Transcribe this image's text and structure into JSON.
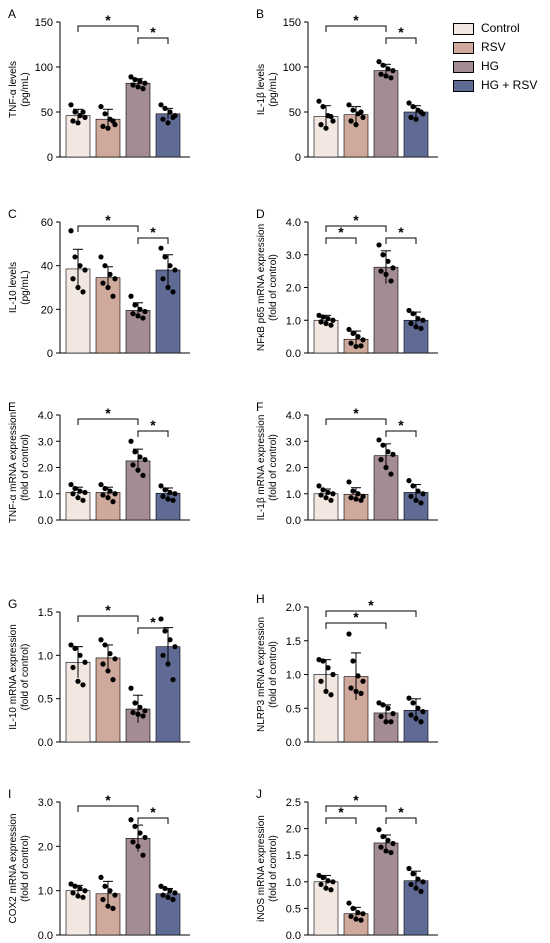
{
  "colors": {
    "control": "#f3e7e1",
    "rsv": "#cfa99b",
    "hg": "#a48c94",
    "hgrsv": "#5f6b94",
    "axis": "#000000"
  },
  "legend": {
    "items": [
      {
        "label": "Control",
        "color": "#f3e7e1"
      },
      {
        "label": "RSV",
        "color": "#cfa99b"
      },
      {
        "label": "HG",
        "color": "#a48c94"
      },
      {
        "label": "HG + RSV",
        "color": "#5f6b94"
      }
    ]
  },
  "chart_data": [
    {
      "panel": "A",
      "type": "bar",
      "categories": [
        "Control",
        "RSV",
        "HG",
        "HG + RSV"
      ],
      "values": [
        46,
        42,
        82,
        48
      ],
      "errors": [
        7,
        11,
        5,
        6
      ],
      "points": [
        [
          58,
          50,
          46,
          44,
          40,
          38,
          50
        ],
        [
          56,
          48,
          42,
          36,
          34,
          32,
          40
        ],
        [
          89,
          86,
          84,
          82,
          80,
          78,
          76
        ],
        [
          58,
          54,
          50,
          46,
          42,
          38,
          44
        ]
      ],
      "ylabel": [
        "TNF-α levels",
        "(pg/mL)"
      ],
      "ylim": [
        0,
        150
      ],
      "yticks": [
        "0",
        "50",
        "100",
        "150"
      ],
      "significance": [
        {
          "from": 0,
          "to": 2,
          "level": 1,
          "label": "*"
        },
        {
          "from": 2,
          "to": 3,
          "level": 0,
          "label": "*"
        }
      ]
    },
    {
      "panel": "B",
      "type": "bar",
      "categories": [
        "Control",
        "RSV",
        "HG",
        "HG + RSV"
      ],
      "values": [
        45,
        47,
        96,
        50
      ],
      "errors": [
        12,
        9,
        7,
        7
      ],
      "points": [
        [
          62,
          56,
          46,
          40,
          36,
          32,
          45
        ],
        [
          58,
          52,
          48,
          44,
          40,
          36,
          50
        ],
        [
          106,
          102,
          98,
          96,
          92,
          90,
          88
        ],
        [
          60,
          56,
          52,
          48,
          44,
          42,
          50
        ]
      ],
      "ylabel": [
        "IL-1β levels",
        "(pg/mL)"
      ],
      "ylim": [
        0,
        150
      ],
      "yticks": [
        "0",
        "50",
        "100",
        "150"
      ],
      "significance": [
        {
          "from": 0,
          "to": 2,
          "level": 1,
          "label": "*"
        },
        {
          "from": 2,
          "to": 3,
          "level": 0,
          "label": "*"
        }
      ]
    },
    {
      "panel": "C",
      "type": "bar",
      "categories": [
        "Control",
        "RSV",
        "HG",
        "HG + RSV"
      ],
      "values": [
        38.5,
        34.5,
        19.5,
        38
      ],
      "errors": [
        9,
        5,
        3.5,
        7
      ],
      "points": [
        [
          56,
          44,
          40,
          38,
          34,
          30,
          28
        ],
        [
          44,
          40,
          36,
          34,
          32,
          30,
          26
        ],
        [
          26,
          22,
          20,
          19,
          18,
          17,
          16
        ],
        [
          48,
          44,
          40,
          38,
          34,
          30,
          28
        ]
      ],
      "ylabel": [
        "IL-10 levels",
        "(pg/mL)"
      ],
      "ylim": [
        0,
        60
      ],
      "yticks": [
        "0",
        "20",
        "40",
        "60"
      ],
      "significance": [
        {
          "from": 0,
          "to": 2,
          "level": 1,
          "label": "*"
        },
        {
          "from": 2,
          "to": 3,
          "level": 0,
          "label": "*"
        }
      ]
    },
    {
      "panel": "D",
      "type": "bar",
      "categories": [
        "Control",
        "RSV",
        "HG",
        "HG + RSV"
      ],
      "values": [
        1.0,
        0.42,
        2.62,
        1.0
      ],
      "errors": [
        0.15,
        0.25,
        0.5,
        0.25
      ],
      "points": [
        [
          1.15,
          1.1,
          1.05,
          1.0,
          0.95,
          0.9,
          0.85
        ],
        [
          0.72,
          0.6,
          0.5,
          0.4,
          0.3,
          0.2,
          0.22
        ],
        [
          3.3,
          3.0,
          2.8,
          2.6,
          2.5,
          2.4,
          2.2
        ],
        [
          1.3,
          1.2,
          1.05,
          1.0,
          0.9,
          0.8,
          0.75
        ]
      ],
      "ylabel": [
        "NFκB p65 mRNA expression",
        "(fold of control)"
      ],
      "ylim": [
        0,
        4
      ],
      "yticks": [
        "0.0",
        "1.0",
        "2.0",
        "3.0",
        "4.0"
      ],
      "significance": [
        {
          "from": 0,
          "to": 1,
          "level": 0,
          "label": "*"
        },
        {
          "from": 0,
          "to": 2,
          "level": 1,
          "label": "*"
        },
        {
          "from": 2,
          "to": 3,
          "level": 0,
          "label": "*"
        }
      ]
    },
    {
      "panel": "E",
      "type": "bar",
      "categories": [
        "Control",
        "RSV",
        "HG",
        "HG + RSV"
      ],
      "values": [
        1.05,
        1.05,
        2.25,
        1.02
      ],
      "errors": [
        0.2,
        0.2,
        0.45,
        0.2
      ],
      "points": [
        [
          1.35,
          1.2,
          1.1,
          1.05,
          1.0,
          0.85,
          0.75
        ],
        [
          1.35,
          1.2,
          1.1,
          1.0,
          0.95,
          0.85,
          0.7
        ],
        [
          3.0,
          2.6,
          2.4,
          2.3,
          2.1,
          1.9,
          1.7
        ],
        [
          1.3,
          1.15,
          1.05,
          1.0,
          0.9,
          0.8,
          0.75
        ]
      ],
      "ylabel": [
        "TNF-α mRNA expression",
        "(fold of control)"
      ],
      "ylim": [
        0,
        4
      ],
      "yticks": [
        "0.0",
        "1.0",
        "2.0",
        "3.0",
        "4.0"
      ],
      "significance": [
        {
          "from": 0,
          "to": 2,
          "level": 1,
          "label": "*"
        },
        {
          "from": 2,
          "to": 3,
          "level": 0,
          "label": "*"
        }
      ]
    },
    {
      "panel": "F",
      "type": "bar",
      "categories": [
        "Control",
        "RSV",
        "HG",
        "HG + RSV"
      ],
      "values": [
        1.0,
        0.98,
        2.45,
        1.05
      ],
      "errors": [
        0.18,
        0.25,
        0.45,
        0.3
      ],
      "points": [
        [
          1.3,
          1.15,
          1.05,
          1.0,
          0.95,
          0.85,
          0.75
        ],
        [
          1.45,
          1.1,
          1.0,
          0.9,
          0.85,
          0.8,
          0.75
        ],
        [
          3.05,
          2.85,
          2.6,
          2.5,
          2.3,
          2.0,
          1.75
        ],
        [
          1.5,
          1.3,
          1.1,
          1.0,
          0.9,
          0.75,
          0.65
        ]
      ],
      "ylabel": [
        "IL-1β mRNA expression",
        "(fold of control)"
      ],
      "ylim": [
        0,
        4
      ],
      "yticks": [
        "0.0",
        "1.0",
        "2.0",
        "3.0",
        "4.0"
      ],
      "significance": [
        {
          "from": 0,
          "to": 2,
          "level": 1,
          "label": "*"
        },
        {
          "from": 2,
          "to": 3,
          "level": 0,
          "label": "*"
        }
      ]
    },
    {
      "panel": "G",
      "type": "bar",
      "categories": [
        "Control",
        "RSV",
        "HG",
        "HG + RSV"
      ],
      "values": [
        0.92,
        0.97,
        0.38,
        1.1
      ],
      "errors": [
        0.18,
        0.15,
        0.16,
        0.22
      ],
      "points": [
        [
          1.12,
          1.08,
          1.0,
          0.92,
          0.86,
          0.7,
          0.66
        ],
        [
          1.18,
          1.12,
          1.02,
          0.96,
          0.9,
          0.82,
          0.72
        ],
        [
          0.62,
          0.45,
          0.4,
          0.36,
          0.34,
          0.32,
          0.3
        ],
        [
          1.42,
          1.28,
          1.18,
          1.1,
          1.0,
          0.9,
          0.72
        ]
      ],
      "ylabel": [
        "IL-10 mRNA expression",
        "(fold of control)"
      ],
      "ylim": [
        0,
        1.5
      ],
      "yticks": [
        "0.0",
        "0.5",
        "1.0",
        "1.5"
      ],
      "significance": [
        {
          "from": 0,
          "to": 2,
          "level": 1,
          "label": "*"
        },
        {
          "from": 2,
          "to": 3,
          "level": 0,
          "label": "*"
        }
      ]
    },
    {
      "panel": "H",
      "type": "bar",
      "categories": [
        "Control",
        "RSV",
        "HG",
        "HG + RSV"
      ],
      "values": [
        1.0,
        0.97,
        0.43,
        0.47
      ],
      "errors": [
        0.22,
        0.35,
        0.12,
        0.17
      ],
      "points": [
        [
          1.22,
          1.2,
          1.1,
          1.0,
          0.9,
          0.75,
          0.7
        ],
        [
          1.6,
          1.2,
          0.98,
          0.9,
          0.8,
          0.75,
          0.72
        ],
        [
          0.58,
          0.55,
          0.5,
          0.42,
          0.38,
          0.3,
          0.3
        ],
        [
          0.65,
          0.58,
          0.5,
          0.45,
          0.4,
          0.35,
          0.3
        ]
      ],
      "ylabel": [
        "NLRP3 mRNA expression",
        "(fold of control)"
      ],
      "ylim": [
        0,
        2
      ],
      "yticks": [
        "0.0",
        "0.5",
        "1.0",
        "1.5",
        "2.0"
      ],
      "significance": [
        {
          "from": 0,
          "to": 2,
          "level": 0,
          "label": "*"
        },
        {
          "from": 0,
          "to": 3,
          "level": 1,
          "label": "*"
        }
      ]
    },
    {
      "panel": "I",
      "type": "bar",
      "categories": [
        "Control",
        "RSV",
        "HG",
        "HG + RSV"
      ],
      "values": [
        1.0,
        0.93,
        2.18,
        0.93
      ],
      "errors": [
        0.12,
        0.28,
        0.3,
        0.12
      ],
      "points": [
        [
          1.15,
          1.1,
          1.05,
          1.0,
          0.95,
          0.88,
          0.85
        ],
        [
          1.3,
          1.1,
          1.0,
          0.9,
          0.8,
          0.65,
          0.6
        ],
        [
          2.6,
          2.45,
          2.3,
          2.2,
          2.1,
          2.0,
          1.8
        ],
        [
          1.1,
          1.05,
          1.0,
          0.95,
          0.9,
          0.85,
          0.8
        ]
      ],
      "ylabel": [
        "COX2 mRNA expression",
        "(fold of control)"
      ],
      "ylim": [
        0,
        3
      ],
      "yticks": [
        "0.0",
        "1.0",
        "2.0",
        "3.0"
      ],
      "significance": [
        {
          "from": 0,
          "to": 2,
          "level": 1,
          "label": "*"
        },
        {
          "from": 2,
          "to": 3,
          "level": 0,
          "label": "*"
        }
      ]
    },
    {
      "panel": "J",
      "type": "bar",
      "categories": [
        "Control",
        "RSV",
        "HG",
        "HG + RSV"
      ],
      "values": [
        1.0,
        0.4,
        1.73,
        1.02
      ],
      "errors": [
        0.12,
        0.12,
        0.15,
        0.18
      ],
      "points": [
        [
          1.12,
          1.08,
          1.02,
          1.0,
          0.95,
          0.88,
          0.85
        ],
        [
          0.6,
          0.5,
          0.42,
          0.4,
          0.35,
          0.3,
          0.28
        ],
        [
          1.98,
          1.85,
          1.78,
          1.72,
          1.65,
          1.58,
          1.55
        ],
        [
          1.25,
          1.15,
          1.05,
          1.0,
          0.95,
          0.88,
          0.82
        ]
      ],
      "ylabel": [
        "iNOS mRNA expression",
        "(fold of control)"
      ],
      "ylim": [
        0,
        2.5
      ],
      "yticks": [
        "0.0",
        "0.5",
        "1.0",
        "1.5",
        "2.0",
        "2.5"
      ],
      "significance": [
        {
          "from": 0,
          "to": 1,
          "level": 0,
          "label": "*"
        },
        {
          "from": 0,
          "to": 2,
          "level": 1,
          "label": "*"
        },
        {
          "from": 2,
          "to": 3,
          "level": 0,
          "label": "*"
        }
      ]
    }
  ]
}
